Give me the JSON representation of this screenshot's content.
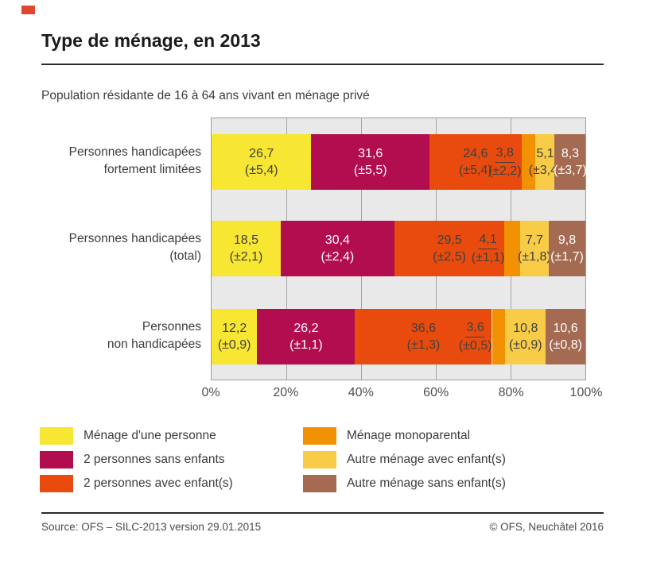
{
  "brand": {
    "red_square_color": "#e2462f"
  },
  "title": "Type de ménage, en 2013",
  "subtitle": "Population résidante de 16 à 64 ans vivant en ménage privé",
  "footer": {
    "source": "Source: OFS – SILC-2013 version 29.01.2015",
    "copyright": "© OFS, Neuchâtel 2016"
  },
  "chart_style": {
    "plot_bg": "#e9e9e9",
    "grid_color": "#a6a6a6",
    "border_color": "#9c9c9c",
    "label_dark": "#404040",
    "label_light": "#ffffff"
  },
  "chart_data": {
    "type": "bar",
    "orientation": "horizontal-stacked",
    "unit": "%",
    "xlim": [
      0,
      100
    ],
    "x_ticks": [
      "0%",
      "20%",
      "40%",
      "60%",
      "80%",
      "100%"
    ],
    "grid_pct": [
      20,
      40,
      60,
      80
    ],
    "legend_position": "bottom-two-columns",
    "legend_columns": [
      [
        0,
        1,
        2
      ],
      [
        3,
        4,
        5
      ]
    ],
    "categories": [
      {
        "lines": [
          "Personnes handicapées",
          "fortement limitées"
        ]
      },
      {
        "lines": [
          "Personnes handicapées",
          "(total)"
        ]
      },
      {
        "lines": [
          "Personnes",
          "non handicapées"
        ]
      }
    ],
    "series": [
      {
        "name": "Ménage d'une personne",
        "color": "#f7e632",
        "label_style": "dark",
        "label_placement": "center",
        "underline": false,
        "values": [
          26.7,
          18.5,
          12.2
        ],
        "ci": [
          5.4,
          2.1,
          0.9
        ]
      },
      {
        "name": "2 personnes sans enfants",
        "color": "#b20d4e",
        "label_style": "light",
        "label_placement": "center",
        "underline": false,
        "values": [
          31.6,
          30.4,
          26.2
        ],
        "ci": [
          5.5,
          2.4,
          1.1
        ]
      },
      {
        "name": "2 personnes avec enfant(s)",
        "color": "#e84b0d",
        "label_style": "dark",
        "label_placement": "center",
        "underline": false,
        "values": [
          24.6,
          29.5,
          36.6
        ],
        "ci": [
          5.4,
          2.5,
          1.3
        ]
      },
      {
        "name": "Ménage monoparental",
        "color": "#f29104",
        "label_style": "dark",
        "label_placement": "before",
        "underline": true,
        "values": [
          3.8,
          4.1,
          3.6
        ],
        "ci": [
          2.2,
          1.1,
          0.5
        ]
      },
      {
        "name": "Autre ménage avec enfant(s)",
        "color": "#f8cc47",
        "label_style": "dark",
        "label_placement": "center",
        "underline": false,
        "values": [
          5.1,
          7.7,
          10.8
        ],
        "ci": [
          3.4,
          1.8,
          0.9
        ]
      },
      {
        "name": "Autre ménage sans enfant(s)",
        "color": "#a56b52",
        "label_style": "light",
        "label_placement": "center",
        "underline": false,
        "values": [
          8.3,
          9.8,
          10.6
        ],
        "ci": [
          3.7,
          1.7,
          0.8
        ]
      }
    ]
  }
}
